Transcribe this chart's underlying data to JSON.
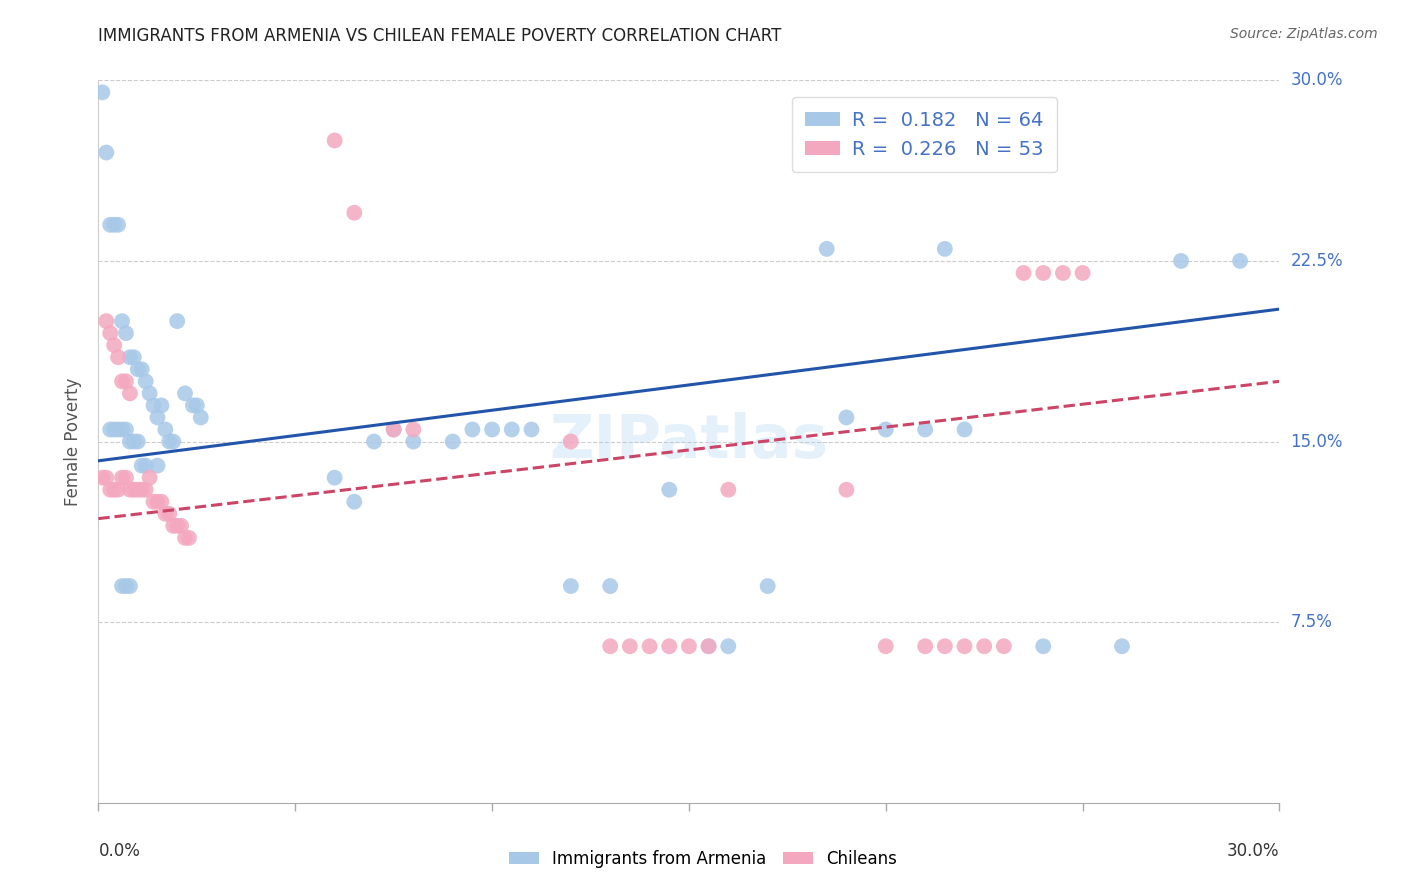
{
  "title": "IMMIGRANTS FROM ARMENIA VS CHILEAN FEMALE POVERTY CORRELATION CHART",
  "source": "Source: ZipAtlas.com",
  "ylabel": "Female Poverty",
  "xmin": 0.0,
  "xmax": 0.3,
  "ymin": 0.0,
  "ymax": 0.3,
  "blue_R": 0.182,
  "blue_N": 64,
  "pink_R": 0.226,
  "pink_N": 53,
  "legend_label_blue": "Immigrants from Armenia",
  "legend_label_pink": "Chileans",
  "blue_color": "#a8c8e8",
  "pink_color": "#f4a8c0",
  "blue_line_color": "#2255aa",
  "pink_line_color": "#cc4466",
  "background_color": "#ffffff",
  "watermark": "ZIPatlas",
  "blue_line_y0": 0.142,
  "blue_line_y1": 0.205,
  "pink_line_y0": 0.118,
  "pink_line_y1": 0.175,
  "blue_x": [
    0.001,
    0.002,
    0.003,
    0.003,
    0.004,
    0.004,
    0.005,
    0.005,
    0.006,
    0.006,
    0.006,
    0.007,
    0.007,
    0.007,
    0.008,
    0.008,
    0.008,
    0.009,
    0.009,
    0.01,
    0.01,
    0.011,
    0.011,
    0.012,
    0.012,
    0.013,
    0.014,
    0.015,
    0.015,
    0.016,
    0.017,
    0.018,
    0.019,
    0.02,
    0.022,
    0.024,
    0.025,
    0.026,
    0.06,
    0.065,
    0.07,
    0.075,
    0.08,
    0.09,
    0.095,
    0.1,
    0.105,
    0.11,
    0.12,
    0.13,
    0.145,
    0.155,
    0.16,
    0.17,
    0.185,
    0.19,
    0.2,
    0.21,
    0.215,
    0.22,
    0.24,
    0.26,
    0.275,
    0.29
  ],
  "blue_y": [
    0.295,
    0.27,
    0.24,
    0.155,
    0.24,
    0.155,
    0.24,
    0.155,
    0.2,
    0.155,
    0.09,
    0.195,
    0.155,
    0.09,
    0.185,
    0.15,
    0.09,
    0.185,
    0.15,
    0.18,
    0.15,
    0.18,
    0.14,
    0.175,
    0.14,
    0.17,
    0.165,
    0.16,
    0.14,
    0.165,
    0.155,
    0.15,
    0.15,
    0.2,
    0.17,
    0.165,
    0.165,
    0.16,
    0.135,
    0.125,
    0.15,
    0.155,
    0.15,
    0.15,
    0.155,
    0.155,
    0.155,
    0.155,
    0.09,
    0.09,
    0.13,
    0.065,
    0.065,
    0.09,
    0.23,
    0.16,
    0.155,
    0.155,
    0.23,
    0.155,
    0.065,
    0.065,
    0.225,
    0.225
  ],
  "pink_x": [
    0.001,
    0.002,
    0.002,
    0.003,
    0.003,
    0.004,
    0.004,
    0.005,
    0.005,
    0.006,
    0.006,
    0.007,
    0.007,
    0.008,
    0.008,
    0.009,
    0.01,
    0.011,
    0.012,
    0.013,
    0.014,
    0.015,
    0.016,
    0.017,
    0.018,
    0.019,
    0.02,
    0.021,
    0.022,
    0.023,
    0.06,
    0.065,
    0.075,
    0.08,
    0.12,
    0.13,
    0.135,
    0.14,
    0.145,
    0.15,
    0.155,
    0.16,
    0.19,
    0.2,
    0.21,
    0.215,
    0.22,
    0.225,
    0.23,
    0.235,
    0.24,
    0.245,
    0.25
  ],
  "pink_y": [
    0.135,
    0.135,
    0.2,
    0.13,
    0.195,
    0.13,
    0.19,
    0.13,
    0.185,
    0.135,
    0.175,
    0.135,
    0.175,
    0.13,
    0.17,
    0.13,
    0.13,
    0.13,
    0.13,
    0.135,
    0.125,
    0.125,
    0.125,
    0.12,
    0.12,
    0.115,
    0.115,
    0.115,
    0.11,
    0.11,
    0.275,
    0.245,
    0.155,
    0.155,
    0.15,
    0.065,
    0.065,
    0.065,
    0.065,
    0.065,
    0.065,
    0.13,
    0.13,
    0.065,
    0.065,
    0.065,
    0.065,
    0.065,
    0.065,
    0.22,
    0.22,
    0.22,
    0.22
  ]
}
